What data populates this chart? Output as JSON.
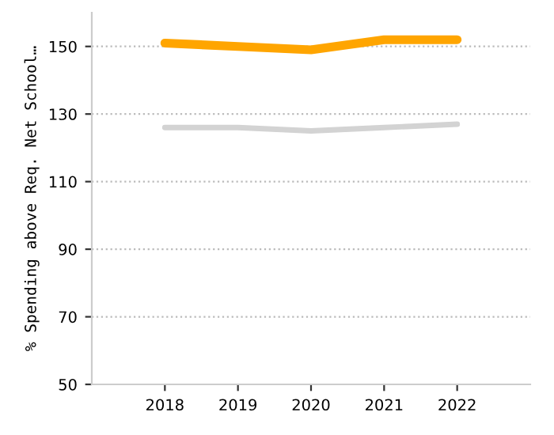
{
  "chart_data": {
    "type": "line",
    "ylabel": "% Spending above Req. Net School…",
    "categories": [
      "2018",
      "2019",
      "2020",
      "2021",
      "2022"
    ],
    "series": [
      {
        "color": "#ffa500",
        "values": [
          151,
          150,
          149,
          152,
          152
        ]
      },
      {
        "color": "#d3d3d3",
        "values": [
          126,
          126,
          125,
          126,
          127
        ]
      }
    ],
    "ylim": [
      50,
      160
    ],
    "yticks": [
      50,
      70,
      90,
      110,
      130,
      150
    ],
    "grid": "y",
    "legend": false
  }
}
